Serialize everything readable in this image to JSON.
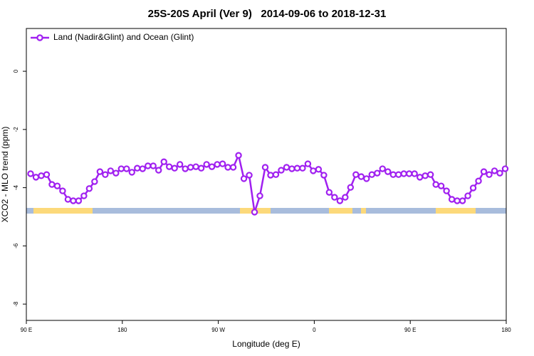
{
  "chart_data": {
    "type": "line",
    "title": "25S-20S April (Ver 9)   2014-09-06 to 2018-12-31",
    "xlabel": "Longitude (deg E)",
    "ylabel": "XCO2 - MLO trend (ppm)",
    "xlim": [
      90,
      540
    ],
    "ylim": [
      -8.56,
      1.47
    ],
    "xticks": [
      {
        "value": 90,
        "label": "90 E"
      },
      {
        "value": 180,
        "label": "180"
      },
      {
        "value": 270,
        "label": "90 W"
      },
      {
        "value": 360,
        "label": "0"
      },
      {
        "value": 450,
        "label": "90 E"
      },
      {
        "value": 540,
        "label": "180"
      }
    ],
    "yticks": [
      0,
      -2,
      -4,
      -6,
      -8
    ],
    "legend": "top-left",
    "x": [
      94,
      99,
      104,
      109,
      114,
      119,
      124,
      129,
      134,
      139,
      144,
      149,
      154,
      159,
      164,
      169,
      174,
      179,
      184,
      189,
      194,
      199,
      204,
      209,
      214,
      219,
      224,
      229,
      234,
      239,
      244,
      249,
      254,
      259,
      264,
      269,
      274,
      279,
      284,
      289,
      294,
      299,
      304,
      309,
      314,
      319,
      324,
      329,
      334,
      339,
      344,
      349,
      354,
      359,
      364,
      369,
      374,
      379,
      384,
      389,
      394,
      399,
      404,
      409,
      414,
      419,
      424,
      429,
      434,
      439,
      444,
      449,
      454,
      459,
      464,
      469,
      474,
      479,
      484,
      489,
      494,
      499,
      504,
      509,
      514,
      519,
      524,
      529,
      534,
      539
    ],
    "series": [
      {
        "name": "Land (Nadir&Glint) and Ocean (Glint)",
        "color": "#a020f0",
        "values": [
          -3.52,
          -3.64,
          -3.59,
          -3.55,
          -3.89,
          -3.94,
          -4.11,
          -4.4,
          -4.45,
          -4.45,
          -4.28,
          -4.03,
          -3.79,
          -3.45,
          -3.55,
          -3.42,
          -3.5,
          -3.35,
          -3.35,
          -3.47,
          -3.33,
          -3.35,
          -3.25,
          -3.25,
          -3.4,
          -3.11,
          -3.28,
          -3.33,
          -3.2,
          -3.35,
          -3.3,
          -3.28,
          -3.33,
          -3.2,
          -3.28,
          -3.2,
          -3.18,
          -3.3,
          -3.3,
          -2.89,
          -3.69,
          -3.57,
          -4.84,
          -4.28,
          -3.3,
          -3.57,
          -3.55,
          -3.4,
          -3.3,
          -3.35,
          -3.33,
          -3.33,
          -3.18,
          -3.42,
          -3.37,
          -3.57,
          -4.16,
          -4.33,
          -4.45,
          -4.33,
          -3.99,
          -3.55,
          -3.62,
          -3.69,
          -3.55,
          -3.5,
          -3.35,
          -3.45,
          -3.55,
          -3.55,
          -3.52,
          -3.52,
          -3.52,
          -3.64,
          -3.59,
          -3.55,
          -3.89,
          -3.94,
          -4.11,
          -4.4,
          -4.45,
          -4.45,
          -4.28,
          -4.01,
          -3.77,
          -3.45,
          -3.55,
          -3.42,
          -3.5,
          -3.35
        ]
      }
    ]
  }
}
